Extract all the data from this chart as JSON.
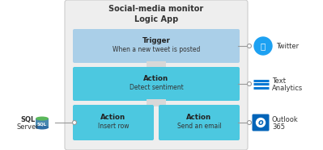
{
  "title_line1": "Social-media monitor",
  "title_line2": "Logic App",
  "outer_box_color": "#eeeeee",
  "outer_box_edge": "#cccccc",
  "trigger_box_color": "#aacfe8",
  "action_box_color": "#4cc8e0",
  "action_box_color2": "#7dd8ec",
  "trigger_title": "Trigger",
  "trigger_subtitle": "When a new tweet is posted",
  "action1_title": "Action",
  "action1_subtitle": "Detect sentiment",
  "action2_title": "Action",
  "action2_subtitle": "Insert row",
  "action3_title": "Action",
  "action3_subtitle": "Send an email",
  "service1_label": "Twitter",
  "service2_line1": "Text",
  "service2_line2": "Analytics",
  "service3_line1": "Outlook",
  "service3_line2": "365",
  "sql_line1": "SQL",
  "sql_line2": "Server",
  "connector_color": "#999999",
  "twitter_color": "#1DA1F2",
  "analytics_color": "#0078D4",
  "outlook_color": "#0078D4",
  "sql_color_top": "#5aab5a",
  "sql_color_body": "#4888b0",
  "sql_color_bottom": "#2e6da4",
  "title_fontsize": 7.0,
  "label_fontsize": 6.2,
  "sublabel_fontsize": 5.5,
  "service_fontsize": 6.0
}
